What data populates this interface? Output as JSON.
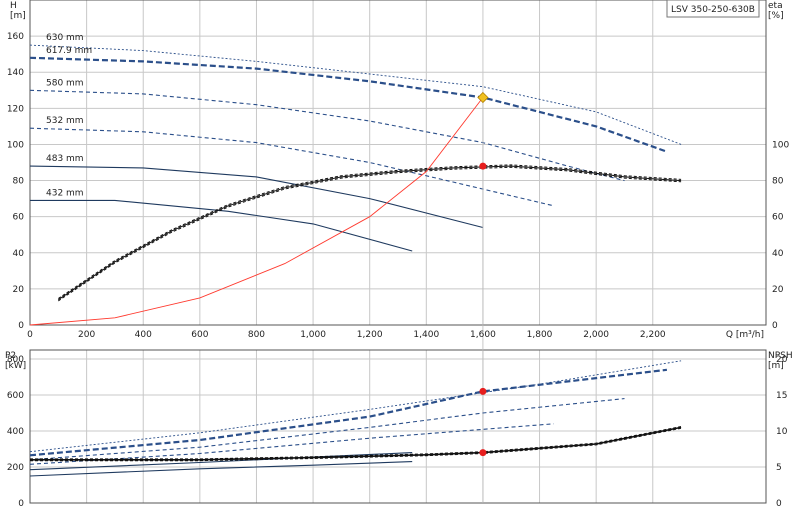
{
  "title_box": "LSV 350-250-630B",
  "colors": {
    "curve_dark": "#1f3a5f",
    "curve_dash": "#2b4f8a",
    "system_line": "#ff3b30",
    "duty_point": "#e61e1e",
    "intersection_point": "#f0c020",
    "eta_curve": "#111111"
  },
  "chart_data": [
    {
      "type": "line",
      "name": "head-efficiency",
      "xlabel": "Q [m³/h]",
      "ylabel_left": "H\n[m]",
      "ylabel_right": "eta\n[%]",
      "x_ticks": [
        0,
        200,
        400,
        600,
        800,
        1000,
        1200,
        1400,
        1600,
        1800,
        2000,
        2200
      ],
      "x_tick_labels": [
        "0",
        "200",
        "400",
        "600",
        "800",
        "1,000",
        "1,200",
        "1,400",
        "1,600",
        "1,800",
        "2,000",
        "2,200"
      ],
      "ylim_left": [
        0,
        180
      ],
      "y_ticks_left": [
        0,
        20,
        40,
        60,
        80,
        100,
        120,
        140,
        160
      ],
      "ylim_right": [
        0,
        180
      ],
      "y_ticks_right": [
        0,
        20,
        40,
        60,
        80,
        100
      ],
      "xlim": [
        0,
        2600
      ],
      "grid": true,
      "head_curves": [
        {
          "label": "630 mm",
          "style": "dash-fine",
          "points": [
            [
              0,
              155
            ],
            [
              400,
              152
            ],
            [
              800,
              146
            ],
            [
              1200,
              139
            ],
            [
              1600,
              132
            ],
            [
              2000,
              118
            ],
            [
              2300,
              100
            ]
          ]
        },
        {
          "label": "617.9 mm",
          "style": "dash-bold",
          "points": [
            [
              0,
              148
            ],
            [
              400,
              146
            ],
            [
              800,
              142
            ],
            [
              1200,
              135
            ],
            [
              1600,
              126
            ],
            [
              2000,
              110
            ],
            [
              2250,
              96
            ]
          ]
        },
        {
          "label": "580 mm",
          "style": "dash",
          "points": [
            [
              0,
              130
            ],
            [
              400,
              128
            ],
            [
              800,
              122
            ],
            [
              1200,
              113
            ],
            [
              1600,
              101
            ],
            [
              1900,
              88
            ],
            [
              2100,
              80
            ]
          ]
        },
        {
          "label": "532 mm",
          "style": "dash",
          "points": [
            [
              0,
              109
            ],
            [
              400,
              107
            ],
            [
              800,
              101
            ],
            [
              1200,
              90
            ],
            [
              1500,
              79
            ],
            [
              1850,
              66
            ]
          ]
        },
        {
          "label": "483 mm",
          "style": "solid",
          "points": [
            [
              0,
              88
            ],
            [
              400,
              87
            ],
            [
              800,
              82
            ],
            [
              1200,
              70
            ],
            [
              1600,
              54
            ]
          ]
        },
        {
          "label": "432 mm",
          "style": "solid",
          "points": [
            [
              0,
              69
            ],
            [
              300,
              69
            ],
            [
              700,
              63
            ],
            [
              1000,
              56
            ],
            [
              1350,
              41
            ]
          ]
        }
      ],
      "eta_curve": [
        [
          100,
          14
        ],
        [
          300,
          35
        ],
        [
          500,
          52
        ],
        [
          700,
          66
        ],
        [
          900,
          76
        ],
        [
          1100,
          82
        ],
        [
          1300,
          85
        ],
        [
          1500,
          87
        ],
        [
          1700,
          88
        ],
        [
          1900,
          86
        ],
        [
          2100,
          82
        ],
        [
          2300,
          80
        ]
      ],
      "system_curve": [
        [
          0,
          0
        ],
        [
          300,
          4
        ],
        [
          600,
          15
        ],
        [
          900,
          34
        ],
        [
          1200,
          60
        ],
        [
          1400,
          85
        ],
        [
          1600,
          126
        ]
      ],
      "points": [
        {
          "x": 1600,
          "y": 126,
          "kind": "intersection"
        },
        {
          "x": 1600,
          "y": 88,
          "kind": "duty"
        }
      ]
    },
    {
      "type": "line",
      "name": "power-npsh",
      "ylabel_left": "P2\n[kW]",
      "ylabel_right": "NPSH\n[m]",
      "ylim_left": [
        0,
        850
      ],
      "y_ticks_left": [
        0,
        200,
        400,
        600,
        800
      ],
      "ylim_right": [
        0,
        21.25
      ],
      "y_ticks_right": [
        0,
        5,
        10,
        15,
        20
      ],
      "xlim": [
        0,
        2600
      ],
      "grid": true,
      "power_curves": [
        {
          "style": "dash-fine",
          "points": [
            [
              0,
              285
            ],
            [
              600,
              390
            ],
            [
              1200,
              520
            ],
            [
              1800,
              660
            ],
            [
              2300,
              790
            ]
          ]
        },
        {
          "style": "dash-bold",
          "points": [
            [
              0,
              265
            ],
            [
              600,
              350
            ],
            [
              1200,
              480
            ],
            [
              1600,
              620
            ],
            [
              2250,
              740
            ]
          ]
        },
        {
          "style": "dash",
          "points": [
            [
              0,
              240
            ],
            [
              600,
              310
            ],
            [
              1200,
              420
            ],
            [
              1600,
              500
            ],
            [
              2100,
              580
            ]
          ]
        },
        {
          "style": "dash",
          "points": [
            [
              0,
              215
            ],
            [
              600,
              275
            ],
            [
              1200,
              360
            ],
            [
              1850,
              440
            ]
          ]
        },
        {
          "style": "solid",
          "points": [
            [
              0,
              185
            ],
            [
              600,
              225
            ],
            [
              1000,
              255
            ],
            [
              1350,
              280
            ]
          ]
        },
        {
          "style": "solid",
          "points": [
            [
              0,
              150
            ],
            [
              600,
              190
            ],
            [
              1000,
              210
            ],
            [
              1350,
              230
            ]
          ]
        }
      ],
      "npsh_curve": [
        [
          0,
          6.0
        ],
        [
          600,
          6.0
        ],
        [
          1000,
          6.3
        ],
        [
          1400,
          6.7
        ],
        [
          1600,
          7.0
        ],
        [
          2000,
          8.2
        ],
        [
          2300,
          10.5
        ]
      ],
      "points": [
        {
          "x": 1600,
          "y": 620,
          "axis": "left",
          "kind": "duty"
        },
        {
          "x": 1600,
          "y": 7.0,
          "axis": "right",
          "kind": "duty"
        }
      ]
    }
  ]
}
